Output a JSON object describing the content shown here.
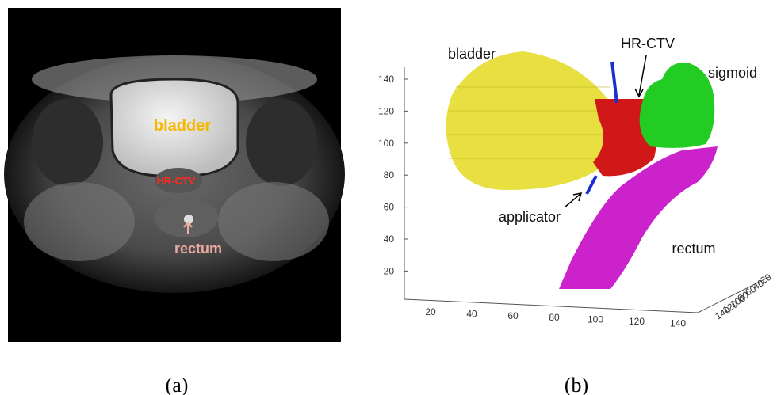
{
  "panel_a": {
    "labels": {
      "bladder": "bladder",
      "hr_ctv": "HR-CTV",
      "rectum": "rectum"
    },
    "caption": "(a)"
  },
  "panel_b": {
    "labels": {
      "bladder": "bladder",
      "hr_ctv": "HR-CTV",
      "sigmoid": "sigmoid",
      "applicator": "applicator",
      "rectum": "rectum"
    },
    "yticks": [
      140,
      120,
      100,
      80,
      60,
      40,
      20
    ],
    "xticks": [
      20,
      40,
      60,
      80,
      100,
      120,
      140
    ],
    "zticks": [
      140,
      120,
      100,
      80,
      60,
      40,
      20
    ],
    "caption": "(b)"
  }
}
